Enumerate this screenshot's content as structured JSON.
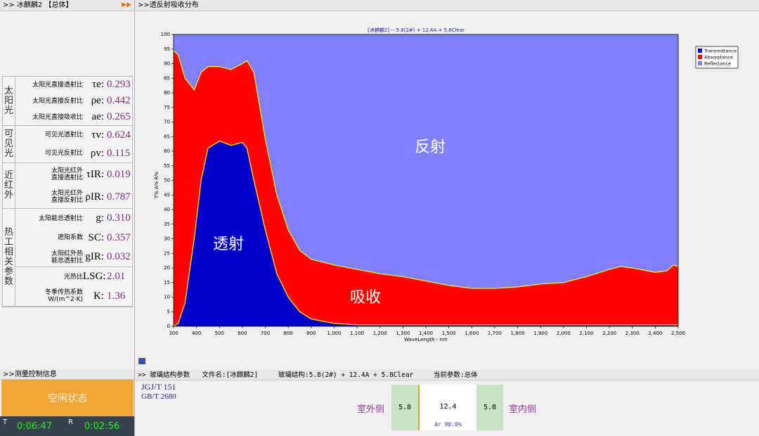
{
  "left_panel": {
    "header": ">> 冰麒麟2 【总体】",
    "groups": [
      {
        "label": "太阳光",
        "rows": [
          {
            "name": "太阳光直接透射比",
            "symbol": "τe:",
            "value": "0.293"
          },
          {
            "name": "太阳光直接反射比",
            "symbol": "ρe:",
            "value": "0.442"
          },
          {
            "name": "太阳光直接吸收比",
            "symbol": "ae:",
            "value": "0.265"
          }
        ]
      },
      {
        "label": "可见光",
        "rows": [
          {
            "name": "可见光透射比",
            "symbol": "τv:",
            "value": "0.624"
          },
          {
            "name": "可见光反射比",
            "symbol": "ρv:",
            "value": "0.115"
          }
        ]
      },
      {
        "label": "近红外",
        "rows": [
          {
            "name": "太阳光红外\n直接透射比",
            "symbol": "τIR:",
            "value": "0.019"
          },
          {
            "name": "太阳光红外\n直接反射比",
            "symbol": "ρIR:",
            "value": "0.787"
          }
        ]
      },
      {
        "label": "热工相关参数",
        "rows": [
          {
            "name": "太阳能总透射比",
            "symbol": "g:",
            "value": "0.310"
          },
          {
            "name": "遮阳系数",
            "symbol": "SC:",
            "value": "0.357"
          },
          {
            "name": "太阳红外热\n能总透射比",
            "symbol": "gIR:",
            "value": "0.032"
          },
          {
            "name": "光热比",
            "symbol": "LSG:",
            "value": "2.01"
          },
          {
            "name": "冬季传热系数\nW/(m^2·K)",
            "symbol": "K:",
            "value": "1.36"
          }
        ]
      }
    ]
  },
  "control": {
    "header": ">>测量控制信息",
    "status": "空闲状态",
    "t_label": "T",
    "t_time": "0:06:47",
    "r_label": "R",
    "r_time": "0:02:56"
  },
  "chart_panel": {
    "header": ">>透反射吸收分布"
  },
  "chart_data": {
    "type": "stacked_area",
    "title": "[冰麒麟2] -- 5.8(2#) + 12.4A + 5.8Clear",
    "x_label": "WaveLength - nm",
    "y_label": "T% A% R%",
    "annotations": [
      "反射",
      "透射",
      "吸收"
    ],
    "legend": "upper right",
    "x": [
      300,
      320,
      350,
      390,
      420,
      450,
      500,
      550,
      600,
      620,
      650,
      700,
      750,
      800,
      850,
      900,
      1000,
      1100,
      1200,
      1300,
      1400,
      1500,
      1600,
      1700,
      1800,
      1900,
      2000,
      2100,
      2200,
      2250,
      2300,
      2400,
      2450,
      2480,
      2500
    ],
    "series": [
      {
        "name": "Transmittance",
        "color": "#0000cc",
        "values": [
          0,
          1,
          8,
          30,
          50,
          61,
          63.5,
          62,
          63,
          61,
          50,
          33,
          18,
          10,
          5,
          2.5,
          1,
          0.5,
          0.5,
          0.5,
          0.5,
          0.5,
          0.5,
          0.5,
          0.5,
          0.5,
          0.5,
          0.5,
          0.5,
          0.5,
          0.5,
          0.5,
          0.5,
          0.5,
          0.5
        ]
      },
      {
        "name": "Absorptance",
        "color": "#ff0000",
        "values": [
          94.5,
          92,
          77,
          51,
          37,
          28,
          25.5,
          26,
          27,
          30,
          37,
          31,
          27,
          23,
          21,
          20.5,
          20,
          19,
          17.5,
          16.5,
          15,
          13.5,
          12.5,
          12.5,
          13,
          14,
          14.5,
          16.5,
          19,
          20,
          19.5,
          18,
          18.5,
          20.5,
          20
        ]
      },
      {
        "name": "Reflectance",
        "color": "#8080ff",
        "values": [
          5.5,
          7,
          15,
          19,
          13,
          11,
          11,
          12,
          10,
          9,
          13,
          36,
          55,
          67,
          74,
          77,
          79,
          80.5,
          82,
          83,
          84.5,
          86,
          87,
          87,
          86.5,
          85.5,
          85,
          83,
          80.5,
          79.5,
          80,
          81.5,
          81,
          79,
          79.5
        ]
      }
    ],
    "xlim": [
      300,
      2500
    ],
    "xticks": [
      300,
      400,
      500,
      600,
      700,
      800,
      900,
      {
        "value": 1000,
        "label": "1,000"
      },
      {
        "value": 1100,
        "label": "1,100"
      },
      {
        "value": 1200,
        "label": "1,200"
      },
      {
        "value": 1300,
        "label": "1,300"
      },
      {
        "value": 1400,
        "label": "1,400"
      },
      {
        "value": 1500,
        "label": "1,500"
      },
      {
        "value": 1600,
        "label": "1,600"
      },
      {
        "value": 1700,
        "label": "1,700"
      },
      {
        "value": 1800,
        "label": "1,800"
      },
      {
        "value": 1900,
        "label": "1,900"
      },
      {
        "value": 2000,
        "label": "2,000"
      },
      {
        "value": 2100,
        "label": "2,100"
      },
      {
        "value": 2200,
        "label": "2,200"
      },
      {
        "value": 2300,
        "label": "2,300"
      },
      {
        "value": 2400,
        "label": "2,400"
      },
      {
        "value": 2500,
        "label": "2,500"
      }
    ],
    "ylim": [
      0,
      100
    ],
    "yticks": [
      0,
      5,
      10,
      15,
      20,
      25,
      30,
      35,
      40,
      45,
      50,
      55,
      60,
      65,
      70,
      75,
      80,
      85,
      90,
      95,
      100
    ],
    "edge_color": "#ffff00"
  },
  "structure": {
    "header": ">> 玻璃结构参数",
    "file": "文件名:[冰麒麟2]",
    "glass": "玻璃结构:5.8(2#) + 12.4A + 5.8Clear",
    "current": "当前参数:总体",
    "standards": [
      "JGJ/T 151",
      "GB/T 2680"
    ],
    "outside": "室外侧",
    "inside": "室内侧",
    "pane1": "5.8",
    "gap": "12.4",
    "gas": "Ar 90.0%",
    "pane2": "5.8"
  }
}
